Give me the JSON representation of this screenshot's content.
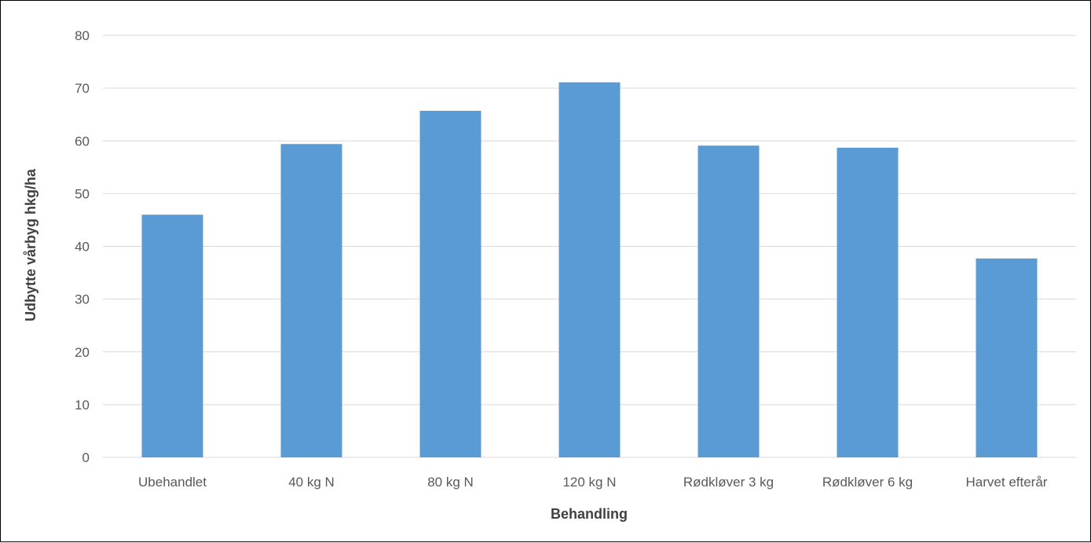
{
  "chart_data": {
    "type": "bar",
    "title": "",
    "xlabel": "Behandling",
    "ylabel": "Udbytte vårbyg hkg/ha",
    "ylim": [
      0,
      80
    ],
    "yticks": [
      0,
      10,
      20,
      30,
      40,
      50,
      60,
      70,
      80
    ],
    "categories": [
      "Ubehandlet",
      "40 kg N",
      "80 kg N",
      "120 kg N",
      "Rødkløver 3 kg",
      "Rødkløver 6 kg",
      "Harvet efterår"
    ],
    "values": [
      46.0,
      59.4,
      65.7,
      71.1,
      59.1,
      58.7,
      37.7
    ],
    "grid": true,
    "legend": "none",
    "bar_color": "#5B9BD5",
    "grid_color": "#D9D9D9"
  }
}
